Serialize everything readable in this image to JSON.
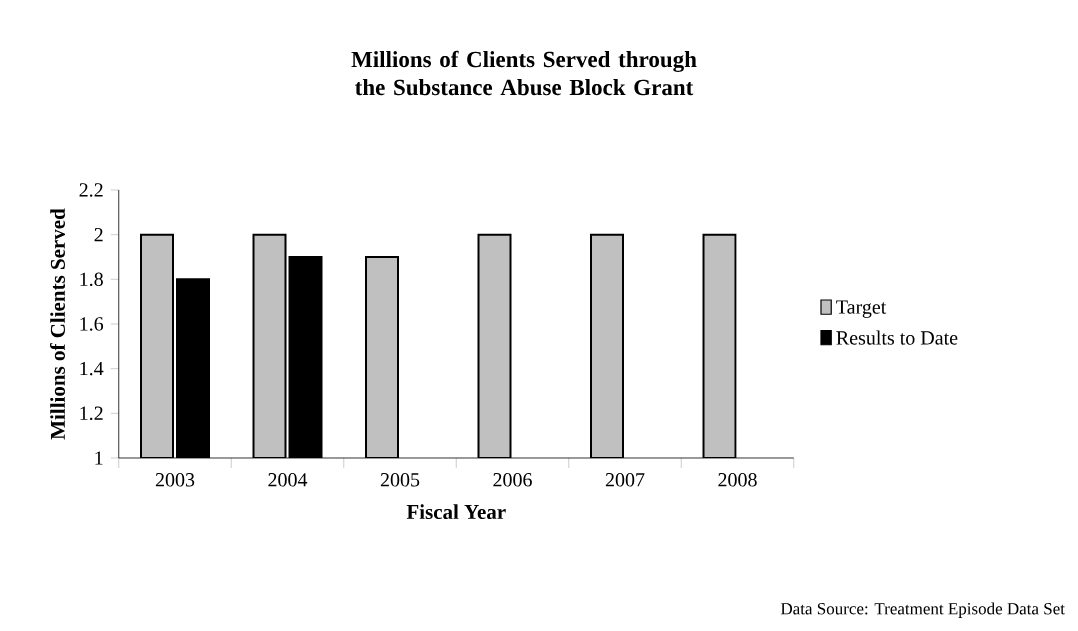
{
  "chart_data": {
    "type": "bar",
    "title": "Millions of Clients Served through the Substance Abuse Block Grant",
    "xlabel": "Fiscal Year",
    "ylabel": "Millions of Clients Served",
    "categories": [
      "2003",
      "2004",
      "2005",
      "2006",
      "2007",
      "2008"
    ],
    "series": [
      {
        "name": "Target",
        "color": "#c0c0c0",
        "values": [
          2,
          2,
          1.9,
          2,
          2,
          2
        ]
      },
      {
        "name": "Results to Date",
        "color": "#000000",
        "values": [
          1.8,
          1.9,
          null,
          null,
          null,
          null
        ]
      }
    ],
    "ylim": [
      1,
      2.2
    ],
    "yticks": [
      1,
      1.2,
      1.4,
      1.6,
      1.8,
      2,
      2.2
    ],
    "legend": "right",
    "annotations": [
      "Data Source: Treatment Episode Data Set"
    ]
  }
}
